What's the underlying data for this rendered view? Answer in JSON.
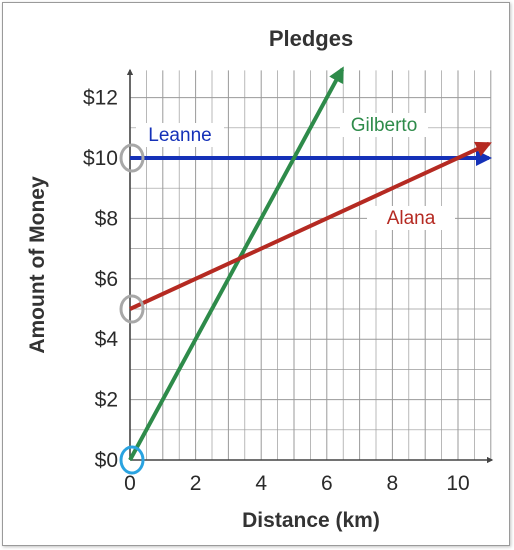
{
  "chart_data": {
    "type": "line",
    "title": "Pledges",
    "xlabel": "Distance (km)",
    "ylabel": "Amount of Money",
    "xlim": [
      0,
      11
    ],
    "ylim": [
      0,
      13
    ],
    "x_ticks": [
      0,
      2,
      4,
      6,
      8,
      10
    ],
    "x_tick_labels": [
      "0",
      "2",
      "4",
      "6",
      "8",
      "10"
    ],
    "y_ticks": [
      0,
      2,
      4,
      6,
      8,
      10,
      12
    ],
    "y_tick_labels": [
      "$0",
      "$2",
      "$4",
      "$6",
      "$8",
      "$10",
      "$12"
    ],
    "grid": true,
    "series": [
      {
        "name": "Leanne",
        "color": "#1531b8",
        "x": [
          0,
          11
        ],
        "y": [
          10,
          10
        ]
      },
      {
        "name": "Gilberto",
        "color": "#2e8b4a",
        "x": [
          0,
          6.5
        ],
        "y": [
          0,
          13
        ]
      },
      {
        "name": "Alana",
        "color": "#b52a22",
        "x": [
          0,
          11
        ],
        "y": [
          5,
          10.5
        ]
      }
    ],
    "highlight_circles": [
      {
        "x": 0,
        "y": 10,
        "color": "#a8a8a8"
      },
      {
        "x": 0,
        "y": 5,
        "color": "#a8a8a8"
      },
      {
        "x": 0,
        "y": 0,
        "color": "#2aa3e0"
      }
    ]
  }
}
